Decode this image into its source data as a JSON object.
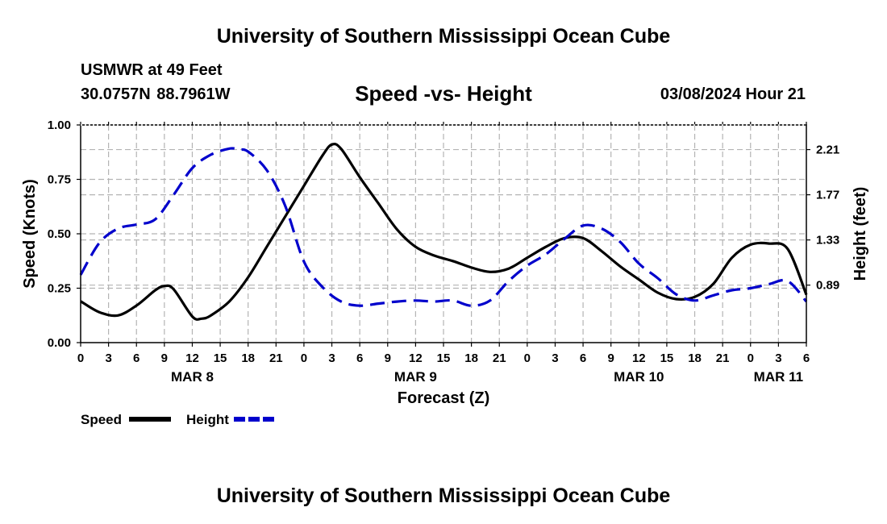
{
  "header": {
    "title": "University of Southern Mississippi Ocean Cube",
    "station": "USMWR at 49 Feet",
    "coords": "30.0757N  88.7961W",
    "subtitle": "Speed -vs- Height",
    "datetime": "03/08/2024 Hour 21"
  },
  "footer": {
    "title": "University of Southern Mississippi Ocean Cube"
  },
  "chart_data": {
    "type": "line",
    "title": "Speed -vs- Height",
    "xlabel": "Forecast (Z)",
    "ylabel": "Speed (Knots)",
    "y2label": "Height (feet)",
    "x_range": [
      0,
      78
    ],
    "x_ticks": [
      0,
      3,
      6,
      9,
      12,
      15,
      18,
      21,
      24,
      27,
      30,
      33,
      36,
      39,
      42,
      45,
      48,
      51,
      54,
      57,
      60,
      63,
      66,
      69,
      72,
      75,
      78
    ],
    "x_tick_labels": [
      "0",
      "3",
      "6",
      "9",
      "12",
      "15",
      "18",
      "21",
      "0",
      "3",
      "6",
      "9",
      "12",
      "15",
      "18",
      "21",
      "0",
      "3",
      "6",
      "9",
      "12",
      "15",
      "18",
      "21",
      "0",
      "3",
      "6"
    ],
    "day_labels": [
      {
        "x": 12,
        "label": "MAR 8"
      },
      {
        "x": 36,
        "label": "MAR 9"
      },
      {
        "x": 60,
        "label": "MAR 10"
      },
      {
        "x": 75,
        "label": "MAR 11"
      }
    ],
    "ylim": [
      0,
      1.0
    ],
    "y_ticks": [
      0,
      0.25,
      0.5,
      0.75,
      1.0
    ],
    "y_tick_labels": [
      "0.00",
      "0.25",
      "0.50",
      "0.75",
      "1.00"
    ],
    "y2lim": [
      0.33,
      2.45
    ],
    "y2_ticks": [
      0.89,
      1.33,
      1.77,
      2.21
    ],
    "y2_tick_labels": [
      "0.89",
      "1.33",
      "1.77",
      "2.21"
    ],
    "grid": true,
    "legend": [
      {
        "name": "Speed",
        "color": "#000000",
        "style": "solid"
      },
      {
        "name": "Height",
        "color": "#0000cc",
        "style": "dashed"
      }
    ],
    "series": [
      {
        "name": "Speed",
        "axis": "left",
        "color": "#000000",
        "dash": "solid",
        "x": [
          0,
          2,
          4,
          6,
          8,
          9,
          10,
          12,
          13,
          14,
          16,
          18,
          20,
          22,
          24,
          26,
          27,
          28,
          30,
          32,
          34,
          36,
          38,
          40,
          42,
          44,
          46,
          48,
          50,
          52,
          54,
          56,
          58,
          60,
          62,
          64,
          66,
          68,
          70,
          72,
          74,
          76,
          78
        ],
        "y": [
          0.19,
          0.14,
          0.125,
          0.17,
          0.24,
          0.26,
          0.245,
          0.12,
          0.11,
          0.125,
          0.19,
          0.3,
          0.44,
          0.58,
          0.72,
          0.86,
          0.91,
          0.89,
          0.76,
          0.64,
          0.52,
          0.44,
          0.4,
          0.375,
          0.345,
          0.325,
          0.34,
          0.39,
          0.44,
          0.48,
          0.48,
          0.42,
          0.35,
          0.29,
          0.23,
          0.2,
          0.21,
          0.27,
          0.39,
          0.45,
          0.455,
          0.43,
          0.22
        ]
      },
      {
        "name": "Height",
        "axis": "right",
        "color": "#0000cc",
        "dash": "dashed",
        "x": [
          0,
          2,
          4,
          6,
          8,
          10,
          12,
          14,
          16,
          17,
          18,
          20,
          22,
          24,
          26,
          28,
          30,
          32,
          34,
          36,
          38,
          40,
          42,
          44,
          46,
          48,
          50,
          52,
          54,
          56,
          58,
          60,
          62,
          64,
          66,
          68,
          70,
          72,
          74,
          76,
          78
        ],
        "y": [
          0.99,
          1.3,
          1.44,
          1.48,
          1.53,
          1.77,
          2.03,
          2.16,
          2.22,
          2.21,
          2.19,
          2.01,
          1.66,
          1.12,
          0.87,
          0.73,
          0.69,
          0.71,
          0.73,
          0.74,
          0.73,
          0.74,
          0.69,
          0.74,
          0.93,
          1.08,
          1.19,
          1.34,
          1.47,
          1.44,
          1.31,
          1.1,
          0.96,
          0.8,
          0.74,
          0.79,
          0.84,
          0.86,
          0.9,
          0.93,
          0.73
        ]
      }
    ]
  }
}
